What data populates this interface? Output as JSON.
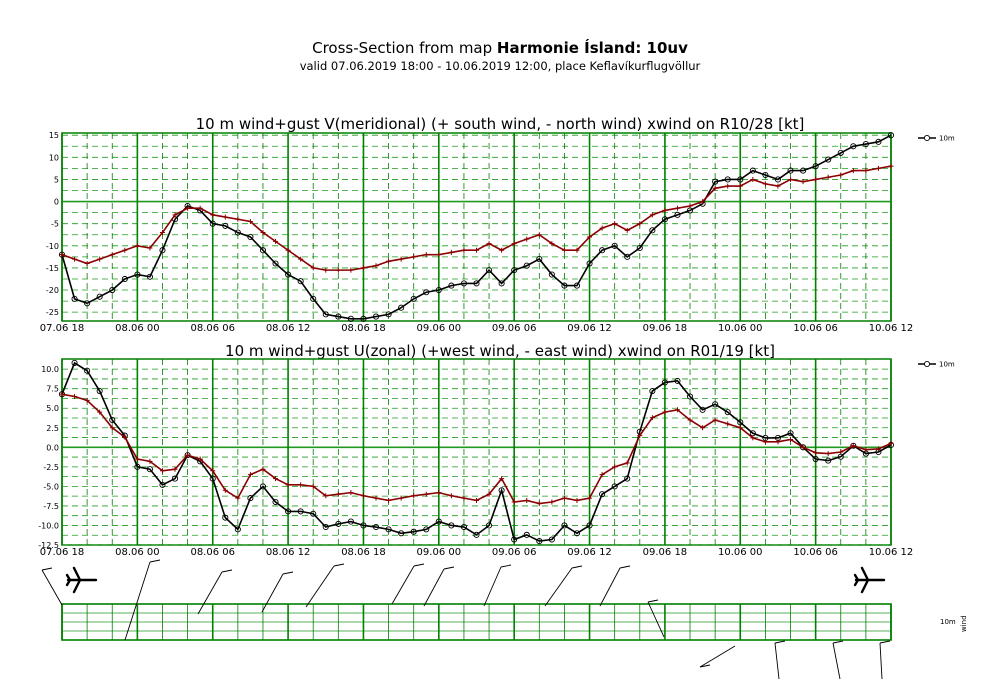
{
  "header": {
    "title_prefix": "Cross-Section from map ",
    "title_bold": "Harmonie Ísland: 10uv",
    "subtitle": "valid 07.06.2019 18:00 - 10.06.2019 12:00, place Keflavíkurflugvöllur"
  },
  "colors": {
    "grid": "#008000",
    "dashed": "#1f9a1f",
    "wind": "#000000",
    "gust": "#8b0000"
  },
  "x_tick_labels": [
    "07.06 18",
    "08.06 00",
    "08.06 06",
    "08.06 12",
    "08.06 18",
    "09.06 00",
    "09.06 06",
    "09.06 12",
    "09.06 18",
    "10.06 00",
    "10.06 06",
    "10.06 12"
  ],
  "chart_data": [
    {
      "type": "line",
      "title": "10 m wind+gust V(meridional) (+ south wind, - north wind) xwind on R10/28 [kt]",
      "x_unit": "hours from 07.06 18",
      "xlim": [
        0,
        66
      ],
      "ylim": [
        -27,
        15.5
      ],
      "y_ticks": [
        15,
        10,
        5,
        0,
        -5,
        -10,
        -15,
        -20,
        -25
      ],
      "y_tick_labels": [
        "15",
        "10",
        "5",
        "0",
        "-5",
        "-10",
        "-15",
        "-20",
        "-25"
      ],
      "legend": {
        "entries": [
          "10m"
        ],
        "placement": "outside-top-right"
      },
      "grid": true,
      "series": [
        {
          "name": "10m",
          "marker": "circle",
          "color": "#000000",
          "values": [
            -12,
            -22,
            -23,
            -21.5,
            -20,
            -17.5,
            -16.5,
            -17,
            -11,
            -4,
            -1,
            -2,
            -5,
            -5.5,
            -7,
            -8,
            -11,
            -14,
            -16.5,
            -18,
            -22,
            -25.5,
            -26,
            -26.5,
            -26.5,
            -26,
            -25.5,
            -24,
            -22,
            -20.5,
            -20,
            -19,
            -18.5,
            -18.5,
            -15.5,
            -18.5,
            -15.5,
            -14.5,
            -13,
            -16.5,
            -19,
            -19,
            -14,
            -11,
            -10,
            -12.5,
            -10.5,
            -6.5,
            -4,
            -3,
            -2,
            -0.5,
            4.5,
            5,
            5,
            7,
            6,
            5,
            7,
            7,
            8,
            9.5,
            11,
            12.5,
            13,
            13.5,
            15
          ]
        },
        {
          "name": "gust",
          "marker": "plus",
          "color": "#8b0000",
          "values": [
            -12,
            -13,
            -14,
            -13,
            -12,
            -11,
            -10,
            -10.5,
            -7,
            -3,
            -1.5,
            -1.5,
            -3,
            -3.5,
            -4,
            -4.5,
            -7,
            -9,
            -11,
            -13,
            -15,
            -15.5,
            -15.5,
            -15.5,
            -15,
            -14.5,
            -13.5,
            -13,
            -12.5,
            -12,
            -12,
            -11.5,
            -11,
            -11,
            -9.5,
            -11,
            -9.5,
            -8.5,
            -7.5,
            -9.5,
            -11,
            -11,
            -8,
            -6,
            -5,
            -6.5,
            -5,
            -3,
            -2,
            -1.5,
            -1,
            0,
            3,
            3.5,
            3.5,
            5,
            4,
            3.5,
            5,
            4.5,
            5,
            5.5,
            6,
            7,
            7,
            7.5,
            8
          ]
        }
      ]
    },
    {
      "type": "line",
      "title": "10 m wind+gust U(zonal) (+west wind, - east wind) xwind on R01/19 [kt]",
      "x_unit": "hours from 07.06 18",
      "xlim": [
        0,
        66
      ],
      "ylim": [
        -12.5,
        11.3
      ],
      "y_ticks": [
        10,
        7.5,
        5,
        2.5,
        0,
        -2.5,
        -5,
        -7.5,
        -10,
        -12.5
      ],
      "y_tick_labels": [
        "10.0",
        "7.5",
        "5.0",
        "2.5",
        "0.0",
        "-2.5",
        "-5.0",
        "-7.5",
        "-10.0",
        "-12.5"
      ],
      "legend": {
        "entries": [
          "10m"
        ],
        "placement": "outside-top-right"
      },
      "grid": true,
      "series": [
        {
          "name": "10m",
          "marker": "circle",
          "color": "#000000",
          "values": [
            6.8,
            10.8,
            9.8,
            7.2,
            3.5,
            1.5,
            -2.5,
            -2.8,
            -4.8,
            -4,
            -1,
            -1.8,
            -4,
            -9,
            -10.5,
            -6.5,
            -5,
            -7,
            -8.2,
            -8.2,
            -8.5,
            -10.2,
            -9.8,
            -9.5,
            -10,
            -10.2,
            -10.5,
            -11,
            -10.8,
            -10.5,
            -9.5,
            -10,
            -10.2,
            -11.2,
            -10,
            -5.5,
            -11.8,
            -11.2,
            -12,
            -11.8,
            -10,
            -11,
            -10,
            -6,
            -5,
            -4,
            2,
            7.2,
            8.3,
            8.5,
            6.5,
            4.8,
            5.5,
            4.5,
            3.2,
            1.8,
            1.2,
            1.2,
            1.8,
            0,
            -1.5,
            -1.7,
            -1.2,
            0.2,
            -0.8,
            -0.6,
            0.3
          ]
        },
        {
          "name": "gust",
          "marker": "plus",
          "color": "#8b0000",
          "values": [
            6.8,
            6.5,
            6,
            4.5,
            2.5,
            1.3,
            -1.5,
            -1.8,
            -3,
            -2.8,
            -1,
            -1.5,
            -3,
            -5.5,
            -6.5,
            -3.5,
            -2.8,
            -4,
            -4.8,
            -4.8,
            -5,
            -6.2,
            -6,
            -5.8,
            -6.2,
            -6.5,
            -6.8,
            -6.5,
            -6.2,
            -6,
            -5.8,
            -6.2,
            -6.5,
            -6.8,
            -6,
            -4,
            -7,
            -6.8,
            -7.2,
            -7,
            -6.5,
            -6.8,
            -6.5,
            -3.5,
            -2.5,
            -2,
            1.5,
            3.8,
            4.5,
            4.8,
            3.5,
            2.5,
            3.5,
            3,
            2.5,
            1.2,
            0.7,
            0.7,
            1,
            0,
            -0.7,
            -0.8,
            -0.6,
            0.2,
            -0.3,
            -0.2,
            0.5
          ]
        }
      ]
    }
  ],
  "wind_strip": {
    "label": "10m",
    "side_label": "wind",
    "left_icon": "airplane-icon",
    "right_icon": "airplane-icon"
  }
}
